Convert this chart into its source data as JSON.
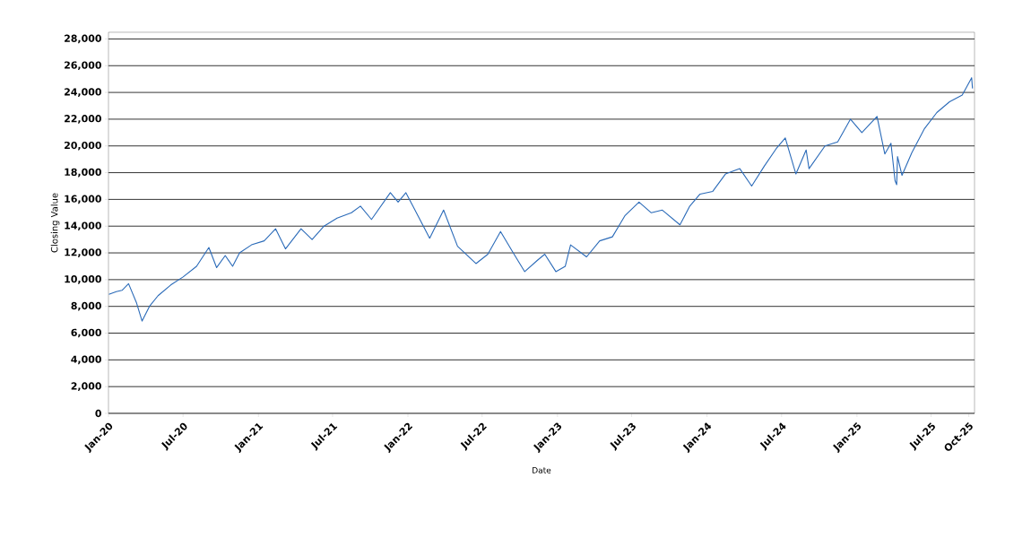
{
  "chart_data": {
    "type": "line",
    "xlabel": "Date",
    "ylabel": "Closing Value",
    "x": [
      "2020-01-02",
      "2020-01-20",
      "2020-02-03",
      "2020-02-19",
      "2020-03-09",
      "2020-03-23",
      "2020-04-10",
      "2020-05-01",
      "2020-06-01",
      "2020-07-01",
      "2020-08-03",
      "2020-09-02",
      "2020-09-21",
      "2020-10-12",
      "2020-10-30",
      "2020-11-16",
      "2020-12-15",
      "2021-01-15",
      "2021-02-12",
      "2021-03-08",
      "2021-04-15",
      "2021-05-12",
      "2021-06-10",
      "2021-07-12",
      "2021-08-16",
      "2021-09-07",
      "2021-10-04",
      "2021-11-19",
      "2021-12-08",
      "2021-12-27",
      "2022-01-13",
      "2022-02-23",
      "2022-03-29",
      "2022-05-02",
      "2022-06-16",
      "2022-07-15",
      "2022-08-15",
      "2022-09-15",
      "2022-10-13",
      "2022-11-15",
      "2022-12-01",
      "2022-12-28",
      "2023-01-20",
      "2023-02-02",
      "2023-03-13",
      "2023-04-14",
      "2023-05-15",
      "2023-06-15",
      "2023-07-19",
      "2023-08-18",
      "2023-09-14",
      "2023-10-27",
      "2023-11-20",
      "2023-12-15",
      "2024-01-15",
      "2024-02-15",
      "2024-03-21",
      "2024-04-19",
      "2024-05-20",
      "2024-06-18",
      "2024-07-10",
      "2024-08-05",
      "2024-08-30",
      "2024-09-06",
      "2024-10-15",
      "2024-11-15",
      "2024-12-16",
      "2025-01-13",
      "2025-02-19",
      "2025-03-10",
      "2025-03-25",
      "2025-04-04",
      "2025-04-08",
      "2025-04-10",
      "2025-04-21",
      "2025-05-15",
      "2025-06-15",
      "2025-07-15",
      "2025-08-15",
      "2025-09-15",
      "2025-10-08",
      "2025-10-10"
    ],
    "series": [
      {
        "color": "#2a6ab8",
        "values": [
          8900,
          9100,
          9200,
          9700,
          8300,
          6900,
          8000,
          8800,
          9600,
          10200,
          11000,
          12400,
          10900,
          11800,
          11000,
          12000,
          12600,
          12900,
          13800,
          12300,
          13800,
          13000,
          14000,
          14600,
          15000,
          15500,
          14500,
          16500,
          15800,
          16500,
          15500,
          13100,
          15200,
          12500,
          11200,
          11900,
          13600,
          12000,
          10600,
          11500,
          11900,
          10600,
          11000,
          12600,
          11700,
          12900,
          13200,
          14800,
          15800,
          15000,
          15200,
          14100,
          15500,
          16400,
          16600,
          17900,
          18300,
          17000,
          18500,
          19800,
          20600,
          17900,
          19700,
          18300,
          20000,
          20300,
          22000,
          21000,
          22200,
          19400,
          20200,
          17400,
          17100,
          19200,
          17800,
          19500,
          21300,
          22500,
          23300,
          23800,
          25100,
          24300
        ]
      }
    ],
    "xlim": [
      "2020-01-01",
      "2025-10-15"
    ],
    "ylim": [
      0,
      28500
    ],
    "xticks": [
      {
        "value": "2020-01-01",
        "label": "Jan-20"
      },
      {
        "value": "2020-07-01",
        "label": "Jul-20"
      },
      {
        "value": "2021-01-01",
        "label": "Jan-21"
      },
      {
        "value": "2021-07-01",
        "label": "Jul-21"
      },
      {
        "value": "2022-01-01",
        "label": "Jan-22"
      },
      {
        "value": "2022-07-01",
        "label": "Jul-22"
      },
      {
        "value": "2023-01-01",
        "label": "Jan-23"
      },
      {
        "value": "2023-07-01",
        "label": "Jul-23"
      },
      {
        "value": "2024-01-01",
        "label": "Jan-24"
      },
      {
        "value": "2024-07-01",
        "label": "Jul-24"
      },
      {
        "value": "2025-01-01",
        "label": "Jan-25"
      },
      {
        "value": "2025-07-01",
        "label": "Jul-25"
      },
      {
        "value": "2025-10-01",
        "label": "Oct-25"
      }
    ],
    "yticks": [
      {
        "value": 0,
        "label": "0"
      },
      {
        "value": 2000,
        "label": "2,000"
      },
      {
        "value": 4000,
        "label": "4,000"
      },
      {
        "value": 6000,
        "label": "6,000"
      },
      {
        "value": 8000,
        "label": "8,000"
      },
      {
        "value": 10000,
        "label": "10,000"
      },
      {
        "value": 12000,
        "label": "12,000"
      },
      {
        "value": 14000,
        "label": "14,000"
      },
      {
        "value": 16000,
        "label": "16,000"
      },
      {
        "value": 18000,
        "label": "18,000"
      },
      {
        "value": 20000,
        "label": "20,000"
      },
      {
        "value": 22000,
        "label": "22,000"
      },
      {
        "value": 24000,
        "label": "24,000"
      },
      {
        "value": 26000,
        "label": "26,000"
      },
      {
        "value": 28000,
        "label": "28,000"
      }
    ],
    "grid": "y",
    "line_style": "solid",
    "marker": "none"
  }
}
